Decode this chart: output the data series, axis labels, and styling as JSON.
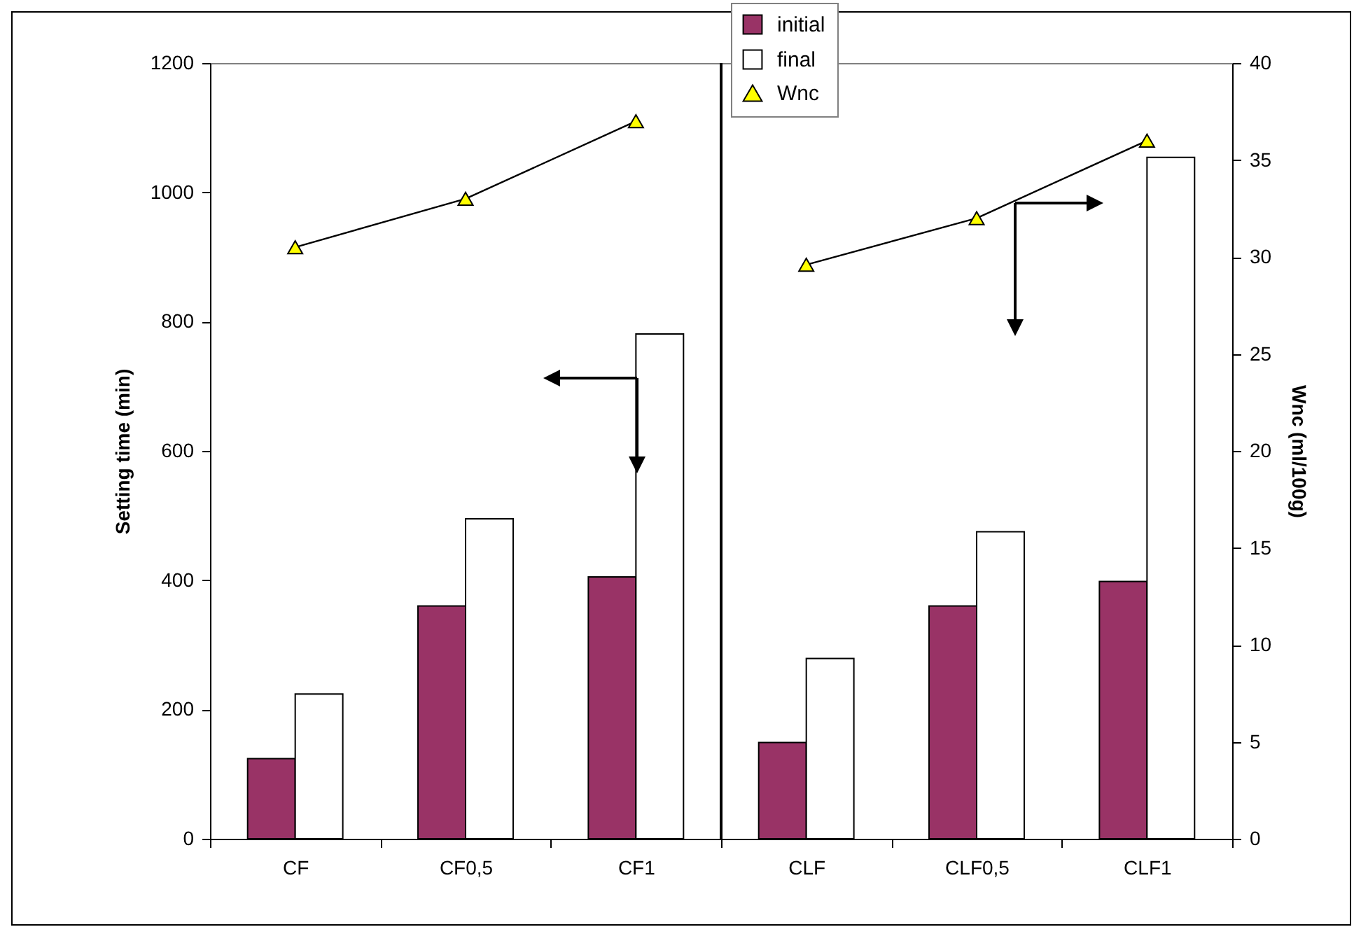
{
  "chart_data": {
    "type": "bar",
    "categories": [
      "CF",
      "CF0,5",
      "CF1",
      "CLF",
      "CLF0,5",
      "CLF1"
    ],
    "series": [
      {
        "name": "initial",
        "color": "#993366",
        "values": [
          124,
          360,
          405,
          149,
          360,
          398
        ]
      },
      {
        "name": "final",
        "color": "#ffffff",
        "values": [
          224,
          495,
          781,
          279,
          475,
          1054
        ]
      },
      {
        "name": "Wnc",
        "type": "line",
        "axis": "y2",
        "color": "#ffff00",
        "values": [
          30.5,
          33,
          37,
          null,
          null,
          null
        ]
      },
      {
        "type": "line",
        "axis": "y2",
        "color": "#ffff00",
        "values": [
          null,
          null,
          null,
          29.6,
          32,
          36
        ]
      }
    ],
    "ylabel": "Setting time (min)",
    "y2label": "Wnc (ml/100g)",
    "ylim": [
      0,
      1200
    ],
    "yticks": [
      0,
      200,
      400,
      600,
      800,
      1000,
      1200
    ],
    "y2lim": [
      0,
      40
    ],
    "y2ticks": [
      0,
      5,
      10,
      15,
      20,
      25,
      30,
      35,
      40
    ],
    "marker": "triangle",
    "legend": "top",
    "grid": false
  }
}
